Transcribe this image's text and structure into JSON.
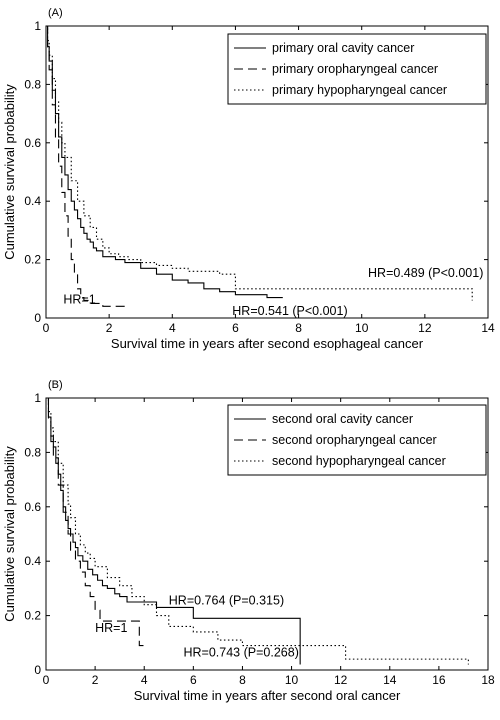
{
  "chart_data": [
    {
      "type": "line",
      "panel_label": "(A)",
      "xlabel": "Survival time in years after second esophageal cancer",
      "ylabel": "Cumulative survival probability",
      "xlim": [
        0,
        14
      ],
      "ylim": [
        0,
        1
      ],
      "xticks": [
        0,
        2,
        4,
        6,
        8,
        10,
        12,
        14
      ],
      "yticks": [
        0,
        0.2,
        0.4,
        0.6,
        0.8,
        1
      ],
      "grid": false,
      "legend_position": "top-right",
      "series": [
        {
          "name": "primary oral cavity cancer",
          "style": "solid",
          "x": [
            0,
            0.05,
            0.1,
            0.2,
            0.3,
            0.4,
            0.5,
            0.6,
            0.7,
            0.8,
            0.9,
            1.0,
            1.1,
            1.2,
            1.3,
            1.4,
            1.5,
            1.6,
            1.8,
            2.0,
            2.2,
            2.5,
            3.0,
            3.5,
            4.0,
            4.5,
            5.0,
            5.5,
            6.0,
            6.5,
            7.0,
            7.5
          ],
          "y": [
            1.0,
            0.93,
            0.88,
            0.78,
            0.7,
            0.62,
            0.55,
            0.49,
            0.44,
            0.4,
            0.37,
            0.34,
            0.31,
            0.29,
            0.27,
            0.26,
            0.24,
            0.23,
            0.21,
            0.21,
            0.2,
            0.19,
            0.17,
            0.15,
            0.13,
            0.12,
            0.1,
            0.09,
            0.08,
            0.08,
            0.07,
            0.07
          ]
        },
        {
          "name": "primary oropharyngeal cancer",
          "style": "dashed",
          "x": [
            0,
            0.05,
            0.1,
            0.2,
            0.3,
            0.4,
            0.5,
            0.6,
            0.7,
            0.8,
            0.9,
            1.0,
            1.1,
            1.2,
            1.4,
            1.6,
            1.8,
            2.0,
            2.2,
            2.5
          ],
          "y": [
            1.0,
            0.92,
            0.85,
            0.73,
            0.62,
            0.52,
            0.43,
            0.35,
            0.28,
            0.2,
            0.15,
            0.1,
            0.07,
            0.06,
            0.05,
            0.05,
            0.04,
            0.04,
            0.04,
            0.04
          ]
        },
        {
          "name": "primary hypopharyngeal cancer",
          "style": "dotted",
          "x": [
            0,
            0.05,
            0.1,
            0.2,
            0.3,
            0.4,
            0.5,
            0.6,
            0.8,
            1.0,
            1.2,
            1.4,
            1.6,
            1.8,
            2.0,
            2.3,
            2.6,
            3.0,
            3.5,
            4.0,
            4.5,
            5.0,
            5.5,
            6.0,
            7.0,
            8.0,
            9.0,
            10.0,
            11.0,
            12.0,
            13.0,
            13.5
          ],
          "y": [
            1.0,
            0.95,
            0.9,
            0.82,
            0.74,
            0.67,
            0.6,
            0.55,
            0.47,
            0.4,
            0.35,
            0.31,
            0.27,
            0.24,
            0.22,
            0.21,
            0.2,
            0.19,
            0.18,
            0.17,
            0.16,
            0.16,
            0.15,
            0.1,
            0.1,
            0.1,
            0.1,
            0.1,
            0.1,
            0.1,
            0.1,
            0.06
          ]
        }
      ],
      "annotations": [
        {
          "text": "HR=1",
          "x": 0.55,
          "y": 0.05
        },
        {
          "text": "HR=0.541 (P<0.001)",
          "x": 5.9,
          "y": 0.01
        },
        {
          "text": "HR=0.489 (P<0.001)",
          "x": 10.2,
          "y": 0.14
        }
      ]
    },
    {
      "type": "line",
      "panel_label": "(B)",
      "xlabel": "Survival time in years after second oral cancer",
      "ylabel": "Cumulative survival probability",
      "xlim": [
        0,
        18
      ],
      "ylim": [
        0,
        1
      ],
      "xticks": [
        0,
        2,
        4,
        6,
        8,
        10,
        12,
        14,
        16,
        18
      ],
      "yticks": [
        0,
        0.2,
        0.4,
        0.6,
        0.8,
        1
      ],
      "grid": false,
      "legend_position": "top-right",
      "series": [
        {
          "name": "second oral cavity cancer",
          "style": "solid",
          "x": [
            0,
            0.1,
            0.2,
            0.3,
            0.4,
            0.5,
            0.6,
            0.7,
            0.8,
            0.9,
            1.0,
            1.1,
            1.2,
            1.3,
            1.5,
            1.7,
            1.9,
            2.1,
            2.3,
            2.5,
            2.8,
            3.0,
            3.3,
            3.7,
            4.0,
            4.5,
            5.0,
            6.0,
            7.0,
            8.0,
            9.0,
            10.3,
            10.35
          ],
          "y": [
            1.0,
            0.93,
            0.86,
            0.82,
            0.76,
            0.72,
            0.66,
            0.6,
            0.55,
            0.52,
            0.5,
            0.47,
            0.45,
            0.42,
            0.4,
            0.37,
            0.35,
            0.33,
            0.31,
            0.3,
            0.28,
            0.27,
            0.25,
            0.25,
            0.25,
            0.23,
            0.23,
            0.19,
            0.19,
            0.19,
            0.19,
            0.19,
            0.02
          ]
        },
        {
          "name": "second oropharyngeal cancer",
          "style": "dashed",
          "x": [
            0,
            0.1,
            0.2,
            0.3,
            0.5,
            0.7,
            0.9,
            1.0,
            1.2,
            1.4,
            1.6,
            1.8,
            2.0,
            2.2,
            2.5,
            3.0,
            3.5,
            3.8,
            4.0
          ],
          "y": [
            1.0,
            0.92,
            0.84,
            0.78,
            0.68,
            0.58,
            0.5,
            0.44,
            0.4,
            0.36,
            0.31,
            0.27,
            0.22,
            0.18,
            0.18,
            0.18,
            0.18,
            0.09,
            0.09
          ]
        },
        {
          "name": "second hypopharyngeal cancer",
          "style": "dotted",
          "x": [
            0,
            0.1,
            0.2,
            0.3,
            0.5,
            0.7,
            0.9,
            1.0,
            1.2,
            1.4,
            1.6,
            1.8,
            2.0,
            2.5,
            3.0,
            3.5,
            4.0,
            4.5,
            5.0,
            6.0,
            7.0,
            8.0,
            9.0,
            10.0,
            11.0,
            12.0,
            12.2,
            13.0,
            14.0,
            15.0,
            16.0,
            17.0,
            17.2
          ],
          "y": [
            1.0,
            0.95,
            0.89,
            0.84,
            0.76,
            0.68,
            0.61,
            0.56,
            0.5,
            0.46,
            0.43,
            0.41,
            0.38,
            0.34,
            0.31,
            0.27,
            0.24,
            0.2,
            0.16,
            0.14,
            0.11,
            0.09,
            0.09,
            0.09,
            0.09,
            0.09,
            0.04,
            0.04,
            0.04,
            0.04,
            0.04,
            0.04,
            0.02
          ]
        }
      ],
      "annotations": [
        {
          "text": "HR=1",
          "x": 2.0,
          "y": 0.14
        },
        {
          "text": "HR=0.764 (P=0.315)",
          "x": 5.0,
          "y": 0.24
        },
        {
          "text": "HR=0.743 (P=0.268)",
          "x": 5.6,
          "y": 0.05
        }
      ]
    }
  ]
}
